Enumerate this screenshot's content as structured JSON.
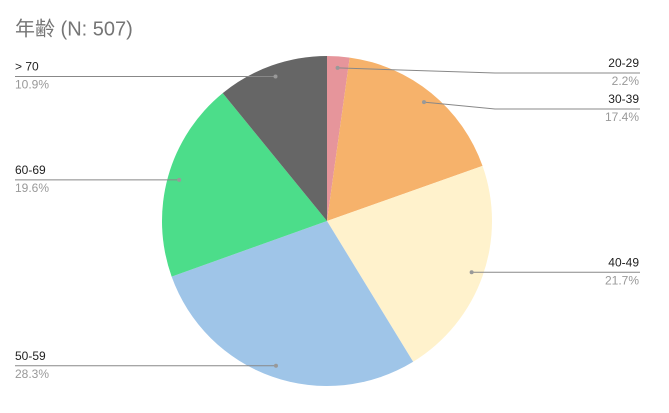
{
  "chart_data": {
    "type": "pie",
    "title": "年齢 (N: 507)",
    "categories": [
      "20-29",
      "30-39",
      "40-49",
      "50-59",
      "60-69",
      "> 70"
    ],
    "values": [
      2.2,
      17.4,
      21.7,
      28.3,
      19.6,
      10.9
    ],
    "value_labels": [
      "2.2%",
      "17.4%",
      "21.7%",
      "28.3%",
      "19.6%",
      "10.9%"
    ],
    "colors": [
      "#e6959b",
      "#f6b26b",
      "#fff2cc",
      "#9fc5e8",
      "#4cdd8a",
      "#666666"
    ]
  }
}
